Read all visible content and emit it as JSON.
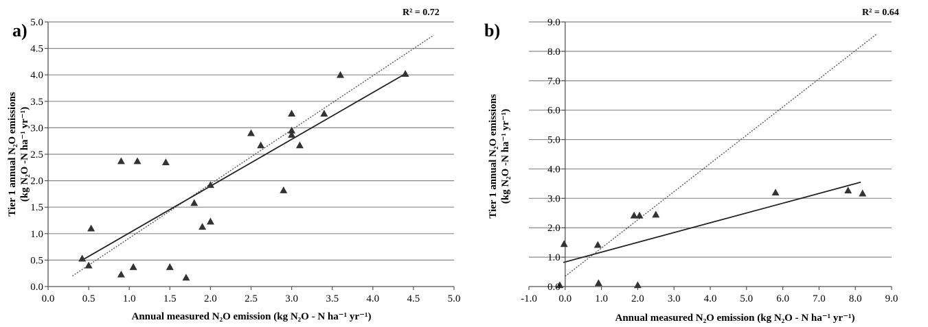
{
  "chart_data": [
    {
      "type": "scatter",
      "panel_label": "a)",
      "r2_label": "R² = 0.72",
      "xlabel": "Annual measured N₂O emission (kg N₂O - N ha⁻¹ yr⁻¹)",
      "ylabel_line1": "Tier 1 annual N₂O emissions",
      "ylabel_line2": "(kg N₂O -N ha⁻¹ yr⁻¹)",
      "xlim": [
        0,
        5
      ],
      "ylim": [
        0,
        5
      ],
      "x_ticks": [
        0,
        0.5,
        1,
        1.5,
        2,
        2.5,
        3,
        3.5,
        4,
        4.5,
        5
      ],
      "y_ticks": [
        0,
        0.5,
        1,
        1.5,
        2,
        2.5,
        3,
        3.5,
        4,
        4.5,
        5
      ],
      "tick_decimals": 1,
      "grid": "horizontal",
      "points": [
        [
          0.42,
          0.53
        ],
        [
          0.5,
          0.4
        ],
        [
          0.53,
          1.1
        ],
        [
          0.9,
          2.37
        ],
        [
          0.9,
          0.23
        ],
        [
          1.05,
          0.37
        ],
        [
          1.1,
          2.37
        ],
        [
          1.45,
          2.35
        ],
        [
          1.5,
          0.37
        ],
        [
          1.7,
          0.17
        ],
        [
          1.8,
          1.58
        ],
        [
          1.9,
          1.13
        ],
        [
          2.0,
          1.23
        ],
        [
          2.0,
          1.92
        ],
        [
          2.5,
          2.9
        ],
        [
          2.62,
          2.67
        ],
        [
          2.9,
          1.82
        ],
        [
          3.0,
          3.27
        ],
        [
          3.0,
          2.95
        ],
        [
          3.0,
          2.87
        ],
        [
          3.1,
          2.67
        ],
        [
          3.4,
          3.27
        ],
        [
          3.6,
          4.0
        ],
        [
          4.4,
          4.02
        ]
      ],
      "regression_line": [
        [
          0.42,
          0.5
        ],
        [
          4.4,
          4.02
        ]
      ],
      "reference_line": [
        [
          0.3,
          0.2
        ],
        [
          4.75,
          4.75
        ]
      ],
      "colors": {
        "points": "#333333",
        "regression": "#222222",
        "reference": "#555555",
        "grid": "#888888"
      }
    },
    {
      "type": "scatter",
      "panel_label": "b)",
      "r2_label": "R² = 0.64",
      "xlabel": "Annual measured N₂O emission (kg N₂O - N ha⁻¹ yr⁻¹)",
      "ylabel_line1": "Tier 1 annual N₂O emissions",
      "ylabel_line2": "(kg N₂O -N ha⁻¹ yr⁻¹)",
      "xlim": [
        -1,
        9
      ],
      "ylim": [
        0,
        9
      ],
      "x_ticks": [
        -1,
        0,
        1,
        2,
        3,
        4,
        5,
        6,
        7,
        8,
        9
      ],
      "y_ticks": [
        0,
        1,
        2,
        3,
        4,
        5,
        6,
        7,
        8,
        9
      ],
      "tick_decimals": 1,
      "grid": "horizontal",
      "points": [
        [
          -0.15,
          0.05
        ],
        [
          -0.03,
          1.45
        ],
        [
          0.9,
          1.42
        ],
        [
          0.92,
          0.12
        ],
        [
          1.9,
          2.42
        ],
        [
          2.0,
          0.05
        ],
        [
          2.05,
          2.42
        ],
        [
          2.5,
          2.45
        ],
        [
          5.8,
          3.2
        ],
        [
          7.8,
          3.27
        ],
        [
          8.2,
          3.17
        ]
      ],
      "regression_line": [
        [
          -0.05,
          0.82
        ],
        [
          8.15,
          3.55
        ]
      ],
      "reference_line": [
        [
          0.0,
          0.35
        ],
        [
          8.6,
          8.6
        ]
      ],
      "colors": {
        "points": "#333333",
        "regression": "#222222",
        "reference": "#555555",
        "grid": "#888888"
      }
    }
  ]
}
